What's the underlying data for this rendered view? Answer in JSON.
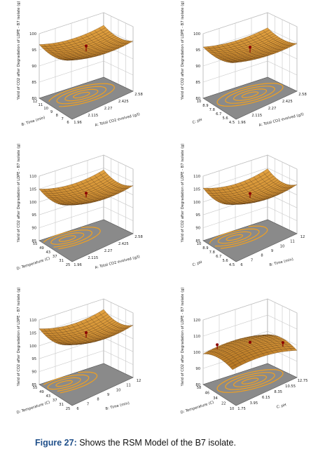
{
  "caption": {
    "label": "Figure 27:",
    "text": " Shows the RSM Model of the B7 isolate."
  },
  "colors": {
    "surface_light": "#f3b24a",
    "surface_dark": "#a86a1c",
    "mesh": "#4a2a08",
    "floor": "#8a8a8a",
    "contour": "#f0a020",
    "grid": "#c8c8c8"
  },
  "chart_data": [
    {
      "type": "surface3d",
      "zlabel": "Yield of CO2 after Degradation of LDPE - B7 isolate (g)",
      "z_ticks": [
        "80",
        "85",
        "90",
        "95",
        "100"
      ],
      "left_axis": {
        "label": "B: Time (min)",
        "ticks": [
          "12",
          "11",
          "10",
          "9",
          "8",
          "7",
          "6"
        ]
      },
      "right_axis": {
        "label": "A: Total CO2 evolved (g/l)",
        "ticks": [
          "1.96",
          "2.115",
          "2.27",
          "2.425",
          "2.58"
        ]
      },
      "peak": 0.55,
      "bowl": 0.12,
      "markers": [
        {
          "u": 0.5,
          "v": 0.5,
          "h": 0.78
        }
      ],
      "contour_center": [
        0.55,
        0.45
      ]
    },
    {
      "type": "surface3d",
      "zlabel": "Yield of CO2 after Degradation of LDPE - B7 isolate (g)",
      "z_ticks": [
        "80",
        "85",
        "90",
        "95",
        "100"
      ],
      "left_axis": {
        "label": "C: pH",
        "ticks": [
          "10",
          "8.9",
          "7.8",
          "6.7",
          "5.6",
          "4.5"
        ]
      },
      "right_axis": {
        "label": "A: Total CO2 evolved (g/l)",
        "ticks": [
          "1.96",
          "2.115",
          "2.27",
          "2.425",
          "2.58"
        ]
      },
      "peak": 0.52,
      "bowl": 0.1,
      "markers": [
        {
          "u": 0.5,
          "v": 0.5,
          "h": 0.76
        }
      ],
      "contour_center": [
        0.5,
        0.5
      ]
    },
    {
      "type": "surface3d",
      "zlabel": "Yield of CO2 after Degradation of LDPE - B7 isolate (g)",
      "z_ticks": [
        "85",
        "90",
        "95",
        "100",
        "105",
        "110"
      ],
      "left_axis": {
        "label": "D: Temperature (C)",
        "ticks": [
          "55",
          "49",
          "43",
          "37",
          "31",
          "25"
        ]
      },
      "right_axis": {
        "label": "A: Total CO2 evolved (g/l)",
        "ticks": [
          "1.96",
          "2.115",
          "2.27",
          "2.425",
          "2.58"
        ]
      },
      "peak": 0.45,
      "bowl": 0.14,
      "markers": [
        {
          "u": 0.5,
          "v": 0.5,
          "h": 0.6
        }
      ],
      "contour_center": [
        0.7,
        0.3
      ]
    },
    {
      "type": "surface3d",
      "zlabel": "Yield of CO2 after Degradation of LDPE - B7 isolate (g)",
      "z_ticks": [
        "85",
        "90",
        "95",
        "100",
        "105",
        "110"
      ],
      "left_axis": {
        "label": "C: pH",
        "ticks": [
          "10",
          "8.9",
          "7.8",
          "6.7",
          "5.6",
          "4.5"
        ]
      },
      "right_axis": {
        "label": "B: Time (min)",
        "ticks": [
          "6",
          "7",
          "8",
          "9",
          "10",
          "11",
          "12"
        ]
      },
      "peak": 0.44,
      "bowl": 0.16,
      "markers": [
        {
          "u": 0.5,
          "v": 0.5,
          "h": 0.6
        }
      ],
      "contour_center": [
        0.65,
        0.3
      ]
    },
    {
      "type": "surface3d",
      "zlabel": "Yield of CO2 after Degradation of LDPE - B7 isolate (g)",
      "z_ticks": [
        "85",
        "90",
        "95",
        "100",
        "105",
        "110"
      ],
      "left_axis": {
        "label": "D: Temperature (C)",
        "ticks": [
          "55",
          "49",
          "43",
          "37",
          "31",
          "25"
        ]
      },
      "right_axis": {
        "label": "B: Time (min)",
        "ticks": [
          "6",
          "7",
          "8",
          "9",
          "10",
          "11",
          "12"
        ]
      },
      "peak": 0.55,
      "bowl": 0.15,
      "markers": [
        {
          "u": 0.5,
          "v": 0.5,
          "h": 0.72
        }
      ],
      "contour_center": [
        0.75,
        0.3
      ]
    },
    {
      "type": "surface3d",
      "zlabel": "Yield of CO2 after Degradation of LDPE - B7 isolate (g)",
      "z_ticks": [
        "80",
        "90",
        "100",
        "110",
        "120"
      ],
      "left_axis": {
        "label": "D: Temperature (C)",
        "ticks": [
          "58",
          "46",
          "34",
          "22",
          "10"
        ]
      },
      "right_axis": {
        "label": "C: pH",
        "ticks": [
          "1.75",
          "3.95",
          "6.15",
          "8.35",
          "10.55",
          "12.75"
        ]
      },
      "peak": 0.38,
      "bowl": -0.12,
      "markers": [
        {
          "u": 0.85,
          "v": 0.15,
          "h": 0.62
        },
        {
          "u": 0.15,
          "v": 0.85,
          "h": 0.58
        },
        {
          "u": 0.5,
          "v": 0.5,
          "h": 0.2
        }
      ],
      "contour_center": [
        0.5,
        0.5
      ]
    }
  ]
}
